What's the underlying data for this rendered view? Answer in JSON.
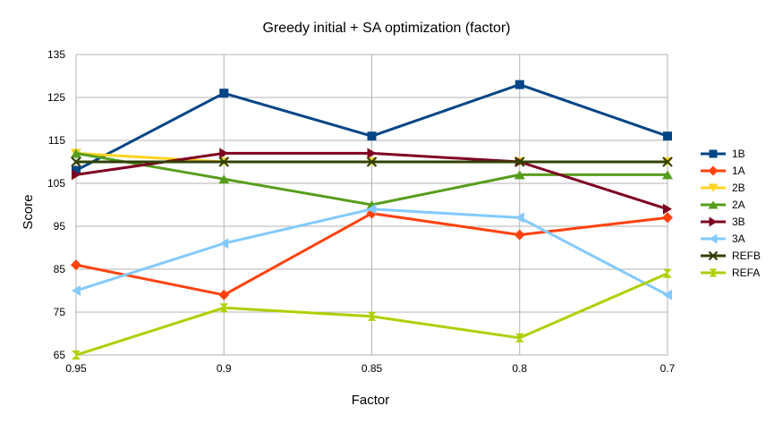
{
  "chart_data": {
    "type": "line",
    "title": "Greedy initial + SA optimization (factor)",
    "xlabel": "Factor",
    "ylabel": "Score",
    "categories": [
      "0.95",
      "0.9",
      "0.85",
      "0.8",
      "0.7"
    ],
    "ylim": [
      65,
      135
    ],
    "yticks": [
      "135",
      "125",
      "115",
      "105",
      "95",
      "85",
      "75",
      "65"
    ],
    "grid": "horizontal",
    "legend_position": "right",
    "series": [
      {
        "name": "1B",
        "values": [
          108,
          126,
          116,
          128,
          116
        ],
        "color": "#004586",
        "marker": "square"
      },
      {
        "name": "1A",
        "values": [
          86,
          79,
          98,
          93,
          97
        ],
        "color": "#ff420e",
        "marker": "diamond"
      },
      {
        "name": "2B",
        "values": [
          112,
          110,
          110,
          110,
          110
        ],
        "color": "#ffd320",
        "marker": "triangle-down"
      },
      {
        "name": "2A",
        "values": [
          112,
          106,
          100,
          107,
          107
        ],
        "color": "#579d1c",
        "marker": "triangle-up"
      },
      {
        "name": "3B",
        "values": [
          107,
          112,
          112,
          110,
          99
        ],
        "color": "#7e0021",
        "marker": "triangle-right"
      },
      {
        "name": "3A",
        "values": [
          80,
          91,
          99,
          97,
          79
        ],
        "color": "#83caff",
        "marker": "triangle-left"
      },
      {
        "name": "REFB",
        "values": [
          110,
          110,
          110,
          110,
          110
        ],
        "color": "#314004",
        "marker": "x"
      },
      {
        "name": "REFA",
        "values": [
          65,
          76,
          74,
          69,
          84
        ],
        "color": "#aecf00",
        "marker": "hourglass"
      }
    ]
  }
}
